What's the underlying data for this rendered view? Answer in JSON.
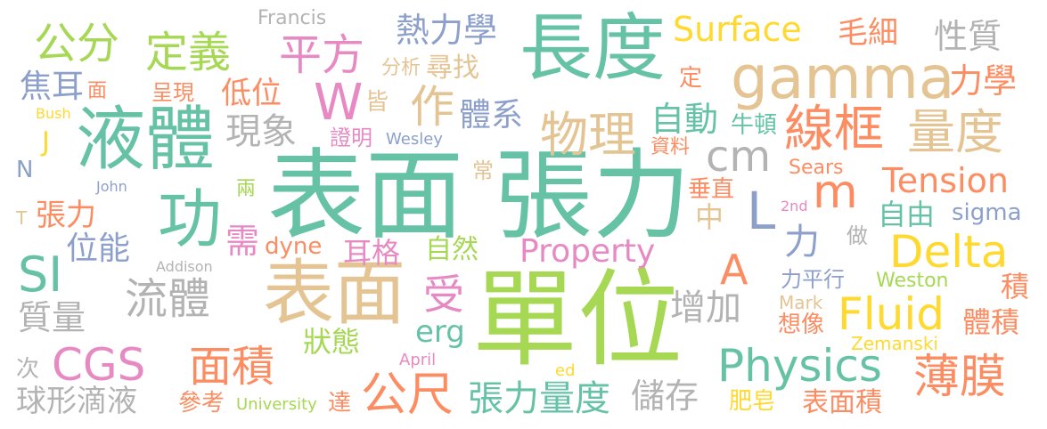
{
  "palette": {
    "teal": "#66c2a5",
    "orange": "#fc8d62",
    "blue": "#8da0cb",
    "pink": "#e78ac3",
    "green": "#a6d854",
    "yellow": "#ffd92f",
    "tan": "#e5c494",
    "gray": "#b3b3b3"
  },
  "words": [
    {
      "text": "表面 張力",
      "color": "#66c2a5"
    },
    {
      "text": "單位",
      "color": "#a6d854"
    },
    {
      "text": "長度",
      "color": "#66c2a5"
    },
    {
      "text": "表面",
      "color": "#e5c494"
    },
    {
      "text": "液體",
      "color": "#66c2a5"
    },
    {
      "text": "gamma",
      "color": "#e5c494"
    },
    {
      "text": "功",
      "color": "#66c2a5"
    },
    {
      "text": "線框",
      "color": "#fc8d62"
    },
    {
      "text": "量度",
      "color": "#e5c494"
    },
    {
      "text": "物理",
      "color": "#e5c494"
    },
    {
      "text": "公分",
      "color": "#a6d854"
    },
    {
      "text": "定義",
      "color": "#a6d854"
    },
    {
      "text": "平方",
      "color": "#e78ac3"
    },
    {
      "text": "熱力學",
      "color": "#8da0cb"
    },
    {
      "text": "Surface",
      "color": "#ffd92f"
    },
    {
      "text": "毛細",
      "color": "#fc8d62"
    },
    {
      "text": "性質",
      "color": "#b3b3b3"
    },
    {
      "text": "Francis",
      "color": "#b3b3b3"
    },
    {
      "text": "分析",
      "color": "#e5c494"
    },
    {
      "text": "尋找",
      "color": "#e5c494"
    },
    {
      "text": "力學",
      "color": "#fc8d62"
    },
    {
      "text": "焦耳",
      "color": "#8da0cb"
    },
    {
      "text": "面",
      "color": "#fc8d62"
    },
    {
      "text": "呈現",
      "color": "#fc8d62"
    },
    {
      "text": "低位",
      "color": "#fc8d62"
    },
    {
      "text": "W",
      "color": "#e78ac3"
    },
    {
      "text": "皆",
      "color": "#e5c494"
    },
    {
      "text": "作",
      "color": "#e5c494"
    },
    {
      "text": "體系",
      "color": "#8da0cb"
    },
    {
      "text": "自動",
      "color": "#66c2a5"
    },
    {
      "text": "定",
      "color": "#fc8d62"
    },
    {
      "text": "牛頓",
      "color": "#66c2a5"
    },
    {
      "text": "Bush",
      "color": "#ffd92f"
    },
    {
      "text": "J",
      "color": "#ffd92f"
    },
    {
      "text": "現象",
      "color": "#b3b3b3"
    },
    {
      "text": "證明",
      "color": "#e78ac3"
    },
    {
      "text": "Wesley",
      "color": "#8da0cb"
    },
    {
      "text": "資料",
      "color": "#fc8d62"
    },
    {
      "text": "cm",
      "color": "#b3b3b3"
    },
    {
      "text": "N",
      "color": "#8da0cb"
    },
    {
      "text": "常",
      "color": "#e5c494"
    },
    {
      "text": "Sears",
      "color": "#fc8d62"
    },
    {
      "text": "m",
      "color": "#fc8d62"
    },
    {
      "text": "Tension",
      "color": "#fc8d62"
    },
    {
      "text": "John",
      "color": "#8da0cb"
    },
    {
      "text": "兩",
      "color": "#a6d854"
    },
    {
      "text": "垂直",
      "color": "#fc8d62"
    },
    {
      "text": "T",
      "color": "#e5c494"
    },
    {
      "text": "張力",
      "color": "#fc8d62"
    },
    {
      "text": "中",
      "color": "#e5c494"
    },
    {
      "text": "L",
      "color": "#8da0cb"
    },
    {
      "text": "2nd",
      "color": "#e78ac3"
    },
    {
      "text": "自由",
      "color": "#66c2a5"
    },
    {
      "text": "sigma",
      "color": "#8da0cb"
    },
    {
      "text": "需",
      "color": "#e78ac3"
    },
    {
      "text": "dyne",
      "color": "#fc8d62"
    },
    {
      "text": "耳格",
      "color": "#e78ac3"
    },
    {
      "text": "自然",
      "color": "#a6d854"
    },
    {
      "text": "Property",
      "color": "#e78ac3"
    },
    {
      "text": "力",
      "color": "#8da0cb"
    },
    {
      "text": "做",
      "color": "#b3b3b3"
    },
    {
      "text": "位能",
      "color": "#8da0cb"
    },
    {
      "text": "Delta",
      "color": "#ffd92f"
    },
    {
      "text": "SI",
      "color": "#66c2a5"
    },
    {
      "text": "Addison",
      "color": "#b3b3b3"
    },
    {
      "text": "A",
      "color": "#fc8d62"
    },
    {
      "text": "流體",
      "color": "#b3b3b3"
    },
    {
      "text": "受",
      "color": "#e78ac3"
    },
    {
      "text": "力平行",
      "color": "#8da0cb"
    },
    {
      "text": "Weston",
      "color": "#a6d854"
    },
    {
      "text": "積",
      "color": "#fc8d62"
    },
    {
      "text": "質量",
      "color": "#b3b3b3"
    },
    {
      "text": "增加",
      "color": "#b3b3b3"
    },
    {
      "text": "Mark",
      "color": "#e5c494"
    },
    {
      "text": "Fluid",
      "color": "#ffd92f"
    },
    {
      "text": "想像",
      "color": "#fc8d62"
    },
    {
      "text": "體積",
      "color": "#fc8d62"
    },
    {
      "text": "狀態",
      "color": "#a6d854"
    },
    {
      "text": "erg",
      "color": "#66c2a5"
    },
    {
      "text": "Zemanski",
      "color": "#ffd92f"
    },
    {
      "text": "CGS",
      "color": "#e78ac3"
    },
    {
      "text": "面積",
      "color": "#fc8d62"
    },
    {
      "text": "April",
      "color": "#e78ac3"
    },
    {
      "text": "Physics",
      "color": "#66c2a5"
    },
    {
      "text": "次",
      "color": "#b3b3b3"
    },
    {
      "text": "ed",
      "color": "#ffd92f"
    },
    {
      "text": "薄膜",
      "color": "#fc8d62"
    },
    {
      "text": "公尺",
      "color": "#fc8d62"
    },
    {
      "text": "張力量度",
      "color": "#66c2a5"
    },
    {
      "text": "儲存",
      "color": "#b3b3b3"
    },
    {
      "text": "球形滴液",
      "color": "#b3b3b3"
    },
    {
      "text": "參考",
      "color": "#fc8d62"
    },
    {
      "text": "University",
      "color": "#a6d854"
    },
    {
      "text": "達",
      "color": "#fc8d62"
    },
    {
      "text": "肥皂",
      "color": "#ffd92f"
    },
    {
      "text": "表面積",
      "color": "#fc8d62"
    }
  ]
}
